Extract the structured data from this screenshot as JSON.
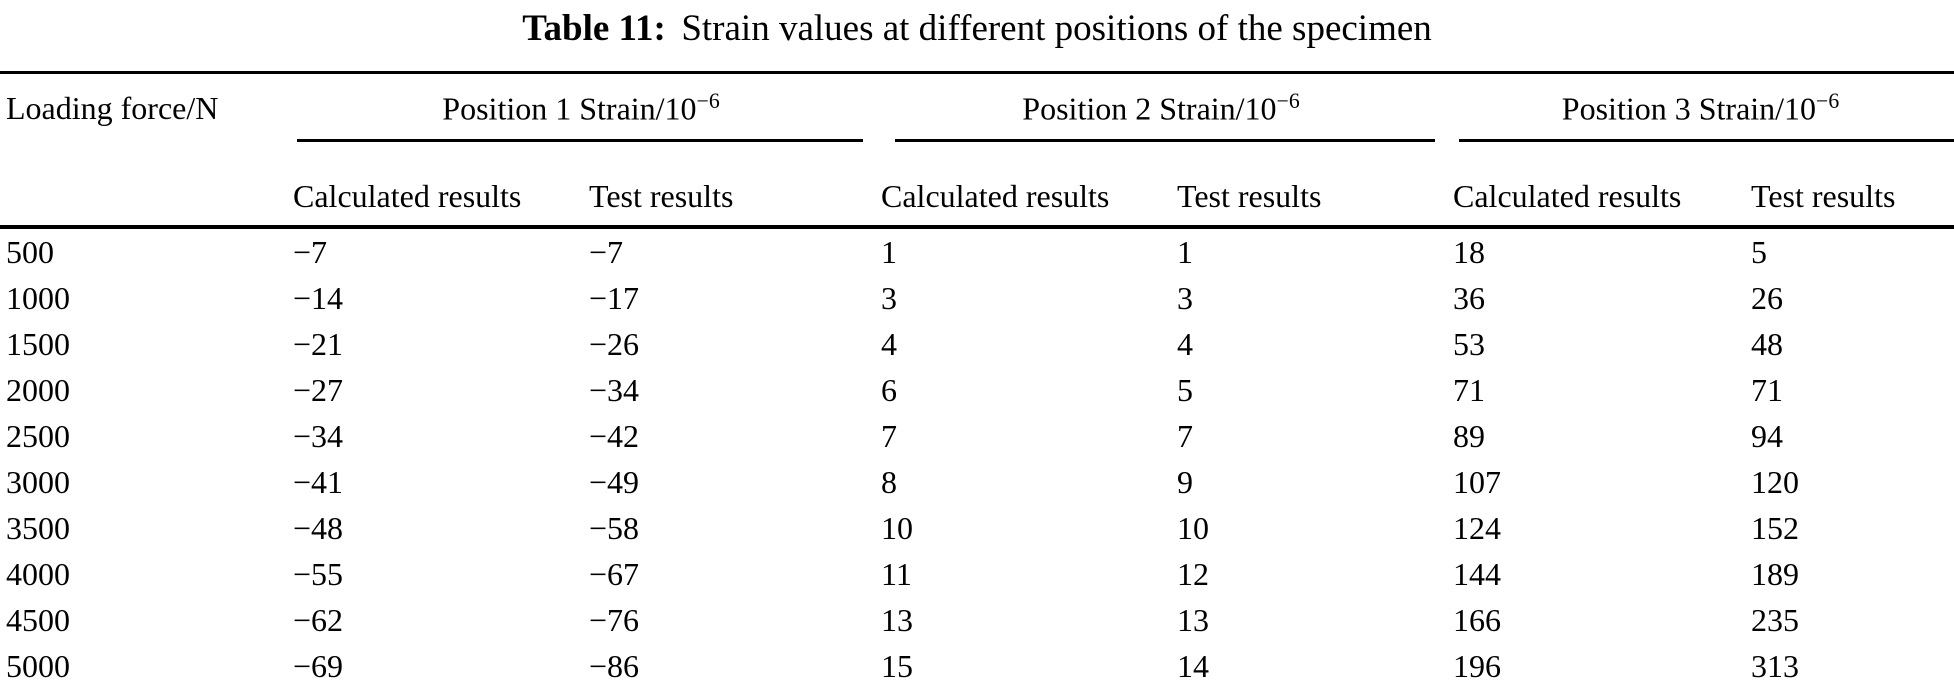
{
  "caption": {
    "label": "Table 11:",
    "text": "Strain values at different positions of the specimen"
  },
  "table": {
    "corner_header": "Loading force/N",
    "groups": [
      {
        "label": "Position 1 Strain/10",
        "exponent": "−6",
        "sub": [
          "Calculated results",
          "Test results"
        ]
      },
      {
        "label": "Position 2 Strain/10",
        "exponent": "−6",
        "sub": [
          "Calculated results",
          "Test results"
        ]
      },
      {
        "label": "Position 3 Strain/10",
        "exponent": "−6",
        "sub": [
          "Calculated results",
          "Test results"
        ]
      }
    ],
    "rows": [
      [
        "500",
        "−7",
        "−7",
        "1",
        "1",
        "18",
        "5"
      ],
      [
        "1000",
        "−14",
        "−17",
        "3",
        "3",
        "36",
        "26"
      ],
      [
        "1500",
        "−21",
        "−26",
        "4",
        "4",
        "53",
        "48"
      ],
      [
        "2000",
        "−27",
        "−34",
        "6",
        "5",
        "71",
        "71"
      ],
      [
        "2500",
        "−34",
        "−42",
        "7",
        "7",
        "89",
        "94"
      ],
      [
        "3000",
        "−41",
        "−49",
        "8",
        "9",
        "107",
        "120"
      ],
      [
        "3500",
        "−48",
        "−58",
        "10",
        "10",
        "124",
        "152"
      ],
      [
        "4000",
        "−55",
        "−67",
        "11",
        "12",
        "144",
        "189"
      ],
      [
        "4500",
        "−62",
        "−76",
        "13",
        "13",
        "166",
        "235"
      ],
      [
        "5000",
        "−69",
        "−86",
        "15",
        "14",
        "196",
        "313"
      ]
    ]
  },
  "chart_data": {
    "type": "table",
    "title": "Table 11: Strain values at different positions of the specimen",
    "columns": [
      "Loading force/N",
      "Position 1 Calculated results",
      "Position 1 Test results",
      "Position 2 Calculated results",
      "Position 2 Test results",
      "Position 3 Calculated results",
      "Position 3 Test results"
    ],
    "loading_force_N": [
      500,
      1000,
      1500,
      2000,
      2500,
      3000,
      3500,
      4000,
      4500,
      5000
    ],
    "position1_calculated": [
      -7,
      -14,
      -21,
      -27,
      -34,
      -41,
      -48,
      -55,
      -62,
      -69
    ],
    "position1_test": [
      -7,
      -17,
      -26,
      -34,
      -42,
      -49,
      -58,
      -67,
      -76,
      -86
    ],
    "position2_calculated": [
      1,
      3,
      4,
      6,
      7,
      8,
      10,
      11,
      13,
      15
    ],
    "position2_test": [
      1,
      3,
      4,
      5,
      7,
      9,
      10,
      12,
      13,
      14
    ],
    "position3_calculated": [
      18,
      36,
      53,
      71,
      89,
      107,
      124,
      144,
      166,
      196
    ],
    "position3_test": [
      5,
      26,
      48,
      71,
      94,
      120,
      152,
      189,
      235,
      313
    ],
    "units": "Strain/10^-6"
  }
}
